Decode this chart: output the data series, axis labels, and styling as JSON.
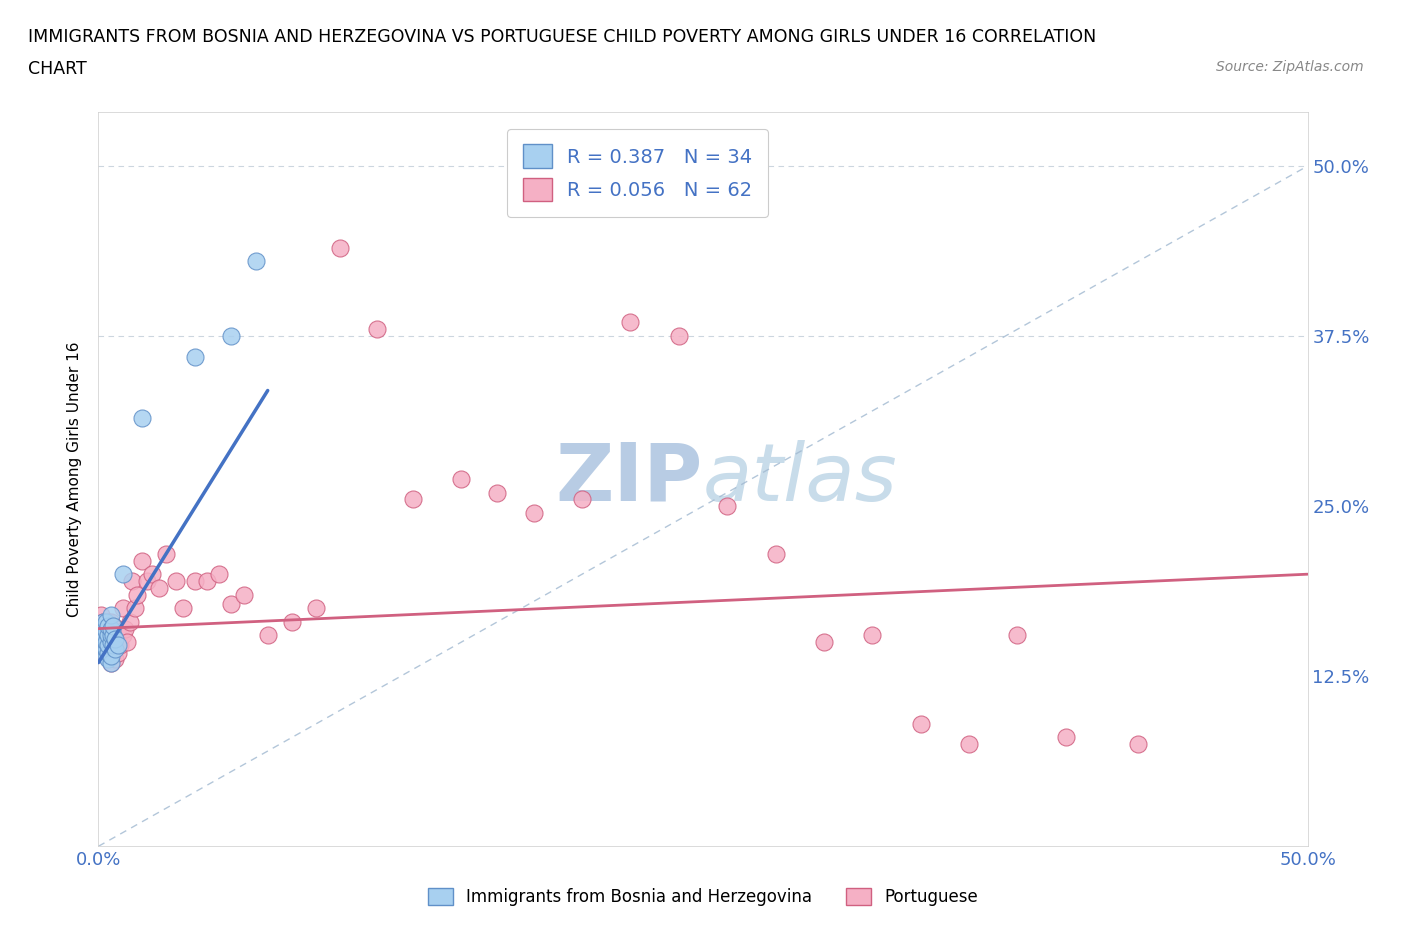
{
  "title_line1": "IMMIGRANTS FROM BOSNIA AND HERZEGOVINA VS PORTUGUESE CHILD POVERTY AMONG GIRLS UNDER 16 CORRELATION",
  "title_line2": "CHART",
  "source": "Source: ZipAtlas.com",
  "ylabel": "Child Poverty Among Girls Under 16",
  "xlim": [
    0.0,
    0.5
  ],
  "ylim": [
    0.0,
    0.54
  ],
  "xticks": [
    0.0,
    0.125,
    0.25,
    0.375,
    0.5
  ],
  "yticks": [
    0.0,
    0.125,
    0.25,
    0.375,
    0.5
  ],
  "blue_R": 0.387,
  "blue_N": 34,
  "pink_R": 0.056,
  "pink_N": 62,
  "blue_label": "Immigrants from Bosnia and Herzegovina",
  "pink_label": "Portuguese",
  "blue_color": "#a8d0f0",
  "pink_color": "#f5b0c5",
  "blue_edge": "#6090c8",
  "pink_edge": "#d06080",
  "trend_blue": "#4472c4",
  "trend_pink": "#d06080",
  "diag_color": "#a0b8d0",
  "watermark": "ZIPatlas",
  "watermark_color": "#d0dde8",
  "blue_scatter_x": [
    0.001,
    0.001,
    0.001,
    0.002,
    0.002,
    0.002,
    0.002,
    0.003,
    0.003,
    0.003,
    0.003,
    0.003,
    0.004,
    0.004,
    0.004,
    0.004,
    0.004,
    0.005,
    0.005,
    0.005,
    0.005,
    0.005,
    0.005,
    0.006,
    0.006,
    0.006,
    0.007,
    0.007,
    0.008,
    0.01,
    0.018,
    0.04,
    0.055,
    0.065
  ],
  "blue_scatter_y": [
    0.15,
    0.155,
    0.16,
    0.145,
    0.148,
    0.155,
    0.165,
    0.14,
    0.145,
    0.15,
    0.158,
    0.165,
    0.138,
    0.142,
    0.148,
    0.155,
    0.162,
    0.135,
    0.14,
    0.15,
    0.155,
    0.16,
    0.17,
    0.148,
    0.155,
    0.162,
    0.145,
    0.152,
    0.148,
    0.2,
    0.315,
    0.36,
    0.375,
    0.43
  ],
  "pink_scatter_x": [
    0.001,
    0.001,
    0.002,
    0.002,
    0.003,
    0.003,
    0.003,
    0.004,
    0.004,
    0.004,
    0.005,
    0.005,
    0.005,
    0.006,
    0.006,
    0.006,
    0.007,
    0.007,
    0.008,
    0.008,
    0.009,
    0.01,
    0.01,
    0.011,
    0.012,
    0.013,
    0.014,
    0.015,
    0.016,
    0.018,
    0.02,
    0.022,
    0.025,
    0.028,
    0.032,
    0.035,
    0.04,
    0.045,
    0.05,
    0.055,
    0.06,
    0.07,
    0.08,
    0.09,
    0.1,
    0.115,
    0.13,
    0.15,
    0.165,
    0.18,
    0.2,
    0.22,
    0.24,
    0.26,
    0.28,
    0.3,
    0.32,
    0.34,
    0.36,
    0.38,
    0.4,
    0.43
  ],
  "pink_scatter_y": [
    0.155,
    0.17,
    0.145,
    0.165,
    0.14,
    0.15,
    0.16,
    0.145,
    0.158,
    0.165,
    0.135,
    0.148,
    0.165,
    0.14,
    0.155,
    0.162,
    0.138,
    0.152,
    0.142,
    0.16,
    0.148,
    0.155,
    0.175,
    0.16,
    0.15,
    0.165,
    0.195,
    0.175,
    0.185,
    0.21,
    0.195,
    0.2,
    0.19,
    0.215,
    0.195,
    0.175,
    0.195,
    0.195,
    0.2,
    0.178,
    0.185,
    0.155,
    0.165,
    0.175,
    0.44,
    0.38,
    0.255,
    0.27,
    0.26,
    0.245,
    0.255,
    0.385,
    0.375,
    0.25,
    0.215,
    0.15,
    0.155,
    0.09,
    0.075,
    0.155,
    0.08,
    0.075
  ]
}
